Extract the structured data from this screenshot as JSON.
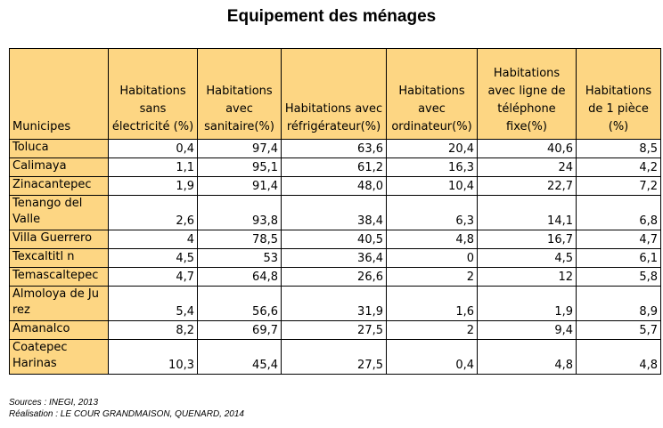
{
  "title": "Equipement des ménages",
  "table": {
    "headers": [
      "Municipes",
      "Habitations sans électricité (%)",
      "Habitations avec sanitaire(%)",
      "Habitations avec réfrigérateur(%)",
      "Habitations avec ordinateur(%)",
      "Habitations avec ligne de téléphone fixe(%)",
      "Habitations de 1 pièce (%)"
    ],
    "rows": [
      [
        "Toluca",
        "0,4",
        "97,4",
        "63,6",
        "20,4",
        "40,6",
        "8,5"
      ],
      [
        "Calimaya",
        "1,1",
        "95,1",
        "61,2",
        "16,3",
        "24",
        "4,2"
      ],
      [
        "Zinacantepec",
        "1,9",
        "91,4",
        "48,0",
        "10,4",
        "22,7",
        "7,2"
      ],
      [
        "Tenango del Valle",
        "2,6",
        "93,8",
        "38,4",
        "6,3",
        "14,1",
        "6,8"
      ],
      [
        "Villa Guerrero",
        "4",
        "78,5",
        "40,5",
        "4,8",
        "16,7",
        "4,7"
      ],
      [
        "Texcaltitl n",
        "4,5",
        "53",
        "36,4",
        "0",
        "4,5",
        "6,1"
      ],
      [
        "Temascaltepec",
        "4,7",
        "64,8",
        "26,6",
        "2",
        "12",
        "5,8"
      ],
      [
        "Almoloya de Ju rez",
        "5,4",
        "56,6",
        "31,9",
        "1,6",
        "1,9",
        "8,9"
      ],
      [
        "Amanalco",
        "8,2",
        "69,7",
        "27,5",
        "2",
        "9,4",
        "5,7"
      ],
      [
        "Coatepec Harinas",
        "10,3",
        "45,4",
        "27,5",
        "0,4",
        "4,8",
        "4,8"
      ]
    ]
  },
  "notes": {
    "sources": "Sources : INEGI, 2013",
    "realisation": "Réalisation : LE COUR GRANDMAISON, QUENARD, 2014"
  },
  "colors": {
    "header_bg": "#fdd683",
    "border": "#000000"
  }
}
